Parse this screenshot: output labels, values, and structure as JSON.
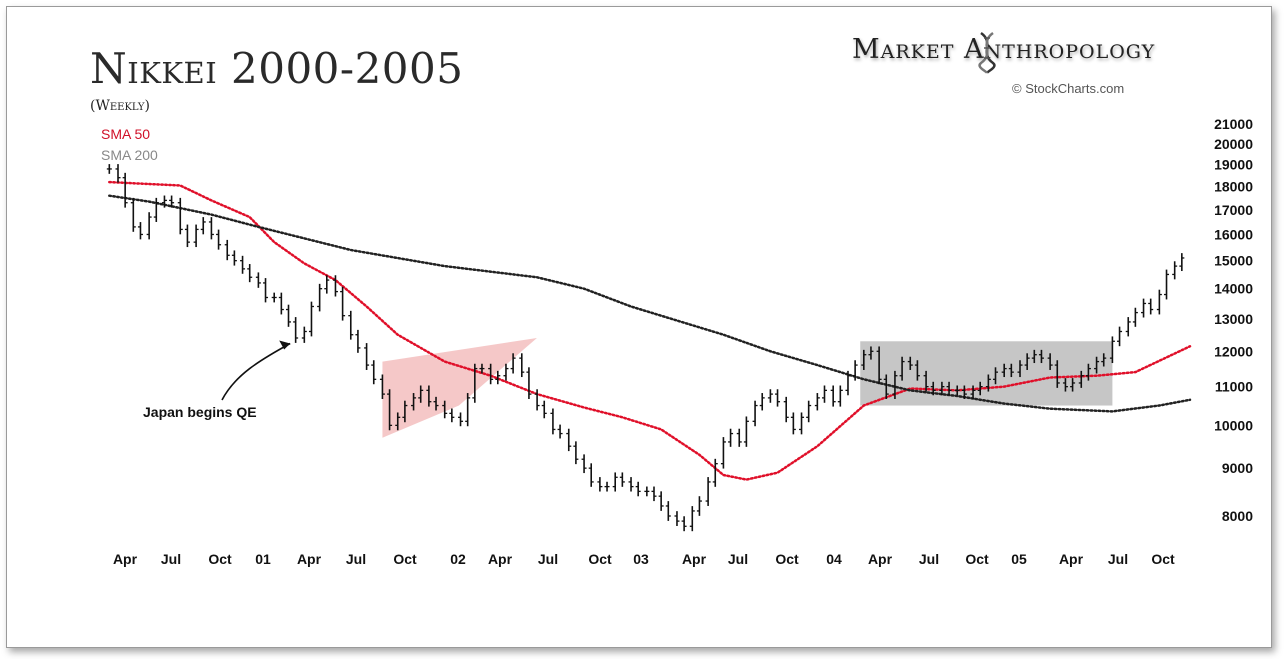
{
  "header": {
    "title": "Nikkei 2000-2005",
    "subtitle": "(Weekly)",
    "sma50_label": "SMA 50",
    "sma200_label": "SMA 200",
    "brand": "Market Anthropology",
    "credit": "© StockCharts.com",
    "annotation": "Japan begins QE"
  },
  "colors": {
    "sma50": "#e0102a",
    "sma200": "#222222",
    "price": "#111111",
    "triangle": "#f2b6b6",
    "range_box": "#b3b3b3"
  },
  "chart_data": {
    "type": "line",
    "scale": "log",
    "xlabel": "",
    "ylabel": "",
    "x_ticks": [
      "Apr",
      "Jul",
      "Oct",
      "01",
      "Apr",
      "Jul",
      "Oct",
      "02",
      "Apr",
      "Jul",
      "Oct",
      "03",
      "Apr",
      "Jul",
      "Oct",
      "04",
      "Apr",
      "Jul",
      "Oct",
      "05",
      "Apr",
      "Jul",
      "Oct"
    ],
    "y_ticks": [
      21000,
      20000,
      19000,
      18000,
      17000,
      16000,
      15000,
      14000,
      13000,
      12000,
      11000,
      10000,
      9000,
      8000
    ],
    "ylim": [
      7600,
      21500
    ],
    "x_range": [
      "2000-04-01",
      "2005-12-31"
    ],
    "series": [
      {
        "name": "SMA 50",
        "style": "dotted",
        "points": [
          [
            "2000-03-15",
            18200
          ],
          [
            "2000-08-01",
            18050
          ],
          [
            "2000-10-01",
            17400
          ],
          [
            "2000-12-15",
            16700
          ],
          [
            "2001-02-01",
            15700
          ],
          [
            "2001-04-01",
            14900
          ],
          [
            "2001-06-01",
            14300
          ],
          [
            "2001-08-01",
            13400
          ],
          [
            "2001-10-01",
            12500
          ],
          [
            "2002-01-01",
            11700
          ],
          [
            "2002-04-01",
            11300
          ],
          [
            "2002-07-01",
            10800
          ],
          [
            "2002-10-01",
            10450
          ],
          [
            "2002-12-15",
            10200
          ],
          [
            "2003-03-01",
            9900
          ],
          [
            "2003-05-15",
            9300
          ],
          [
            "2003-07-01",
            8850
          ],
          [
            "2003-08-15",
            8750
          ],
          [
            "2003-10-15",
            8900
          ],
          [
            "2004-01-01",
            9500
          ],
          [
            "2004-04-01",
            10500
          ],
          [
            "2004-07-01",
            10950
          ],
          [
            "2004-10-01",
            10900
          ],
          [
            "2005-01-01",
            11000
          ],
          [
            "2005-04-01",
            11250
          ],
          [
            "2005-07-01",
            11300
          ],
          [
            "2005-09-15",
            11400
          ],
          [
            "2005-12-31",
            12150
          ]
        ]
      },
      {
        "name": "SMA 200",
        "style": "dotted",
        "points": [
          [
            "2000-03-15",
            17600
          ],
          [
            "2000-06-01",
            17350
          ],
          [
            "2000-10-01",
            16800
          ],
          [
            "2001-01-01",
            16300
          ],
          [
            "2001-07-01",
            15400
          ],
          [
            "2002-01-01",
            14800
          ],
          [
            "2002-07-01",
            14400
          ],
          [
            "2002-10-01",
            14000
          ],
          [
            "2003-01-01",
            13400
          ],
          [
            "2003-07-01",
            12500
          ],
          [
            "2003-10-01",
            12000
          ],
          [
            "2004-01-01",
            11600
          ],
          [
            "2004-04-01",
            11200
          ],
          [
            "2004-07-01",
            10900
          ],
          [
            "2004-10-01",
            10750
          ],
          [
            "2005-01-01",
            10550
          ],
          [
            "2005-04-01",
            10420
          ],
          [
            "2005-08-01",
            10350
          ],
          [
            "2005-11-01",
            10500
          ],
          [
            "2005-12-31",
            10650
          ]
        ]
      },
      {
        "name": "Price",
        "style": "ohlc",
        "points": [
          [
            "2000-03-15",
            18800
          ],
          [
            "2000-04-01",
            18400
          ],
          [
            "2000-04-15",
            17300
          ],
          [
            "2000-05-01",
            16300
          ],
          [
            "2000-05-15",
            16000
          ],
          [
            "2000-06-01",
            16700
          ],
          [
            "2000-06-15",
            17300
          ],
          [
            "2000-07-01",
            17400
          ],
          [
            "2000-07-15",
            17300
          ],
          [
            "2000-08-01",
            16200
          ],
          [
            "2000-08-15",
            15700
          ],
          [
            "2000-09-01",
            16200
          ],
          [
            "2000-09-15",
            16500
          ],
          [
            "2000-10-01",
            16000
          ],
          [
            "2000-10-15",
            15600
          ],
          [
            "2000-11-01",
            15200
          ],
          [
            "2000-11-15",
            15000
          ],
          [
            "2000-12-01",
            14700
          ],
          [
            "2000-12-15",
            14400
          ],
          [
            "2001-01-01",
            14200
          ],
          [
            "2001-01-15",
            13700
          ],
          [
            "2001-02-01",
            13700
          ],
          [
            "2001-02-15",
            13300
          ],
          [
            "2001-03-01",
            12900
          ],
          [
            "2001-03-15",
            12400
          ],
          [
            "2001-04-01",
            12600
          ],
          [
            "2001-04-15",
            13400
          ],
          [
            "2001-05-01",
            14000
          ],
          [
            "2001-05-15",
            14300
          ],
          [
            "2001-06-01",
            13900
          ],
          [
            "2001-06-15",
            13100
          ],
          [
            "2001-07-01",
            12500
          ],
          [
            "2001-07-15",
            12100
          ],
          [
            "2001-08-01",
            11600
          ],
          [
            "2001-08-15",
            11200
          ],
          [
            "2001-09-01",
            10800
          ],
          [
            "2001-09-15",
            10000
          ],
          [
            "2001-10-01",
            10200
          ],
          [
            "2001-10-15",
            10500
          ],
          [
            "2001-11-01",
            10700
          ],
          [
            "2001-11-15",
            10900
          ],
          [
            "2001-12-01",
            10600
          ],
          [
            "2001-12-15",
            10500
          ],
          [
            "2002-01-01",
            10300
          ],
          [
            "2002-01-15",
            10200
          ],
          [
            "2002-02-01",
            10100
          ],
          [
            "2002-02-15",
            10700
          ],
          [
            "2002-03-01",
            11500
          ],
          [
            "2002-03-15",
            11500
          ],
          [
            "2002-04-01",
            11200
          ],
          [
            "2002-04-15",
            11300
          ],
          [
            "2002-05-01",
            11500
          ],
          [
            "2002-05-15",
            11800
          ],
          [
            "2002-06-01",
            11400
          ],
          [
            "2002-06-15",
            10800
          ],
          [
            "2002-07-01",
            10500
          ],
          [
            "2002-07-15",
            10300
          ],
          [
            "2002-08-01",
            9900
          ],
          [
            "2002-08-15",
            9800
          ],
          [
            "2002-09-01",
            9500
          ],
          [
            "2002-09-15",
            9200
          ],
          [
            "2002-10-01",
            9000
          ],
          [
            "2002-10-15",
            8700
          ],
          [
            "2002-11-01",
            8600
          ],
          [
            "2002-11-15",
            8600
          ],
          [
            "2002-12-01",
            8800
          ],
          [
            "2002-12-15",
            8700
          ],
          [
            "2003-01-01",
            8600
          ],
          [
            "2003-01-15",
            8500
          ],
          [
            "2003-02-01",
            8500
          ],
          [
            "2003-02-15",
            8400
          ],
          [
            "2003-03-01",
            8200
          ],
          [
            "2003-03-15",
            8000
          ],
          [
            "2003-04-01",
            7900
          ],
          [
            "2003-04-15",
            7800
          ],
          [
            "2003-05-01",
            8100
          ],
          [
            "2003-05-15",
            8300
          ],
          [
            "2003-06-01",
            8700
          ],
          [
            "2003-06-15",
            9100
          ],
          [
            "2003-07-01",
            9600
          ],
          [
            "2003-07-15",
            9800
          ],
          [
            "2003-08-01",
            9600
          ],
          [
            "2003-08-15",
            10100
          ],
          [
            "2003-09-01",
            10500
          ],
          [
            "2003-09-15",
            10700
          ],
          [
            "2003-10-01",
            10800
          ],
          [
            "2003-10-15",
            10600
          ],
          [
            "2003-11-01",
            10200
          ],
          [
            "2003-11-15",
            9900
          ],
          [
            "2003-12-01",
            10200
          ],
          [
            "2003-12-15",
            10500
          ],
          [
            "2004-01-01",
            10700
          ],
          [
            "2004-01-15",
            10900
          ],
          [
            "2004-02-01",
            10600
          ],
          [
            "2004-02-15",
            10900
          ],
          [
            "2004-03-01",
            11300
          ],
          [
            "2004-03-15",
            11600
          ],
          [
            "2004-04-01",
            11900
          ],
          [
            "2004-04-15",
            12000
          ],
          [
            "2004-05-01",
            11200
          ],
          [
            "2004-05-15",
            10800
          ],
          [
            "2004-06-01",
            11300
          ],
          [
            "2004-06-15",
            11700
          ],
          [
            "2004-07-01",
            11600
          ],
          [
            "2004-07-15",
            11300
          ],
          [
            "2004-08-01",
            11000
          ],
          [
            "2004-08-15",
            10900
          ],
          [
            "2004-09-01",
            11000
          ],
          [
            "2004-09-15",
            10900
          ],
          [
            "2004-10-01",
            10900
          ],
          [
            "2004-10-15",
            10800
          ],
          [
            "2004-11-01",
            10900
          ],
          [
            "2004-11-15",
            11000
          ],
          [
            "2004-12-01",
            11200
          ],
          [
            "2004-12-15",
            11400
          ],
          [
            "2005-01-01",
            11500
          ],
          [
            "2005-01-15",
            11400
          ],
          [
            "2005-02-01",
            11600
          ],
          [
            "2005-02-15",
            11800
          ],
          [
            "2005-03-01",
            11900
          ],
          [
            "2005-03-15",
            11800
          ],
          [
            "2005-04-01",
            11600
          ],
          [
            "2005-04-15",
            11100
          ],
          [
            "2005-05-01",
            11000
          ],
          [
            "2005-05-15",
            11100
          ],
          [
            "2005-06-01",
            11300
          ],
          [
            "2005-06-15",
            11500
          ],
          [
            "2005-07-01",
            11700
          ],
          [
            "2005-07-15",
            11800
          ],
          [
            "2005-08-01",
            12300
          ],
          [
            "2005-08-15",
            12600
          ],
          [
            "2005-09-01",
            12900
          ],
          [
            "2005-09-15",
            13200
          ],
          [
            "2005-10-01",
            13500
          ],
          [
            "2005-10-15",
            13300
          ],
          [
            "2005-11-01",
            13800
          ],
          [
            "2005-11-15",
            14500
          ],
          [
            "2005-12-01",
            14800
          ],
          [
            "2005-12-15",
            15100
          ]
        ]
      }
    ],
    "annotations": [
      {
        "type": "arrow",
        "text": "Japan begins QE",
        "date": "2001-03-20",
        "value": 12600
      },
      {
        "type": "triangle",
        "x_from": "2001-09-01",
        "x_to": "2002-06-15",
        "lows": [
          9700,
          10500
        ],
        "highs": [
          11700,
          12400
        ]
      },
      {
        "type": "range_box",
        "x_from": "2004-03-25",
        "x_to": "2005-08-01",
        "y_range": [
          10500,
          12300
        ]
      }
    ]
  }
}
